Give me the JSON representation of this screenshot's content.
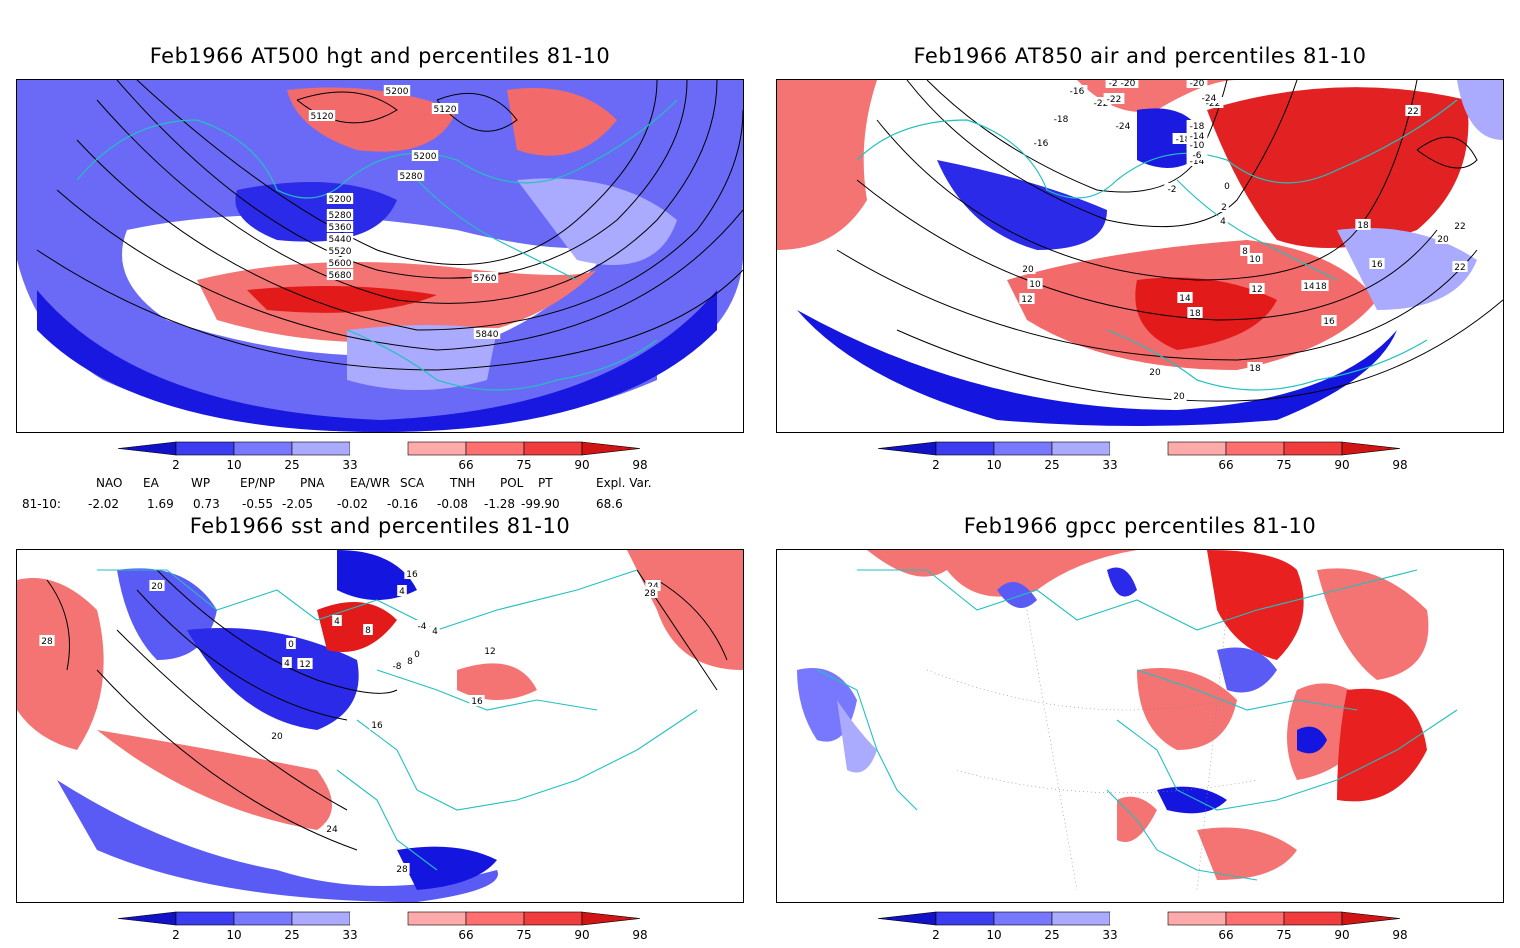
{
  "panels": [
    {
      "id": "p1",
      "title": "Feb1966 AT500 hgt and percentiles 81-10",
      "contour_labels": [
        "5200",
        "5120",
        "5120",
        "5200",
        "5280",
        "5200",
        "5280",
        "5360",
        "5440",
        "5520",
        "5600",
        "5680",
        "5760",
        "5840"
      ]
    },
    {
      "id": "p2",
      "title": "Feb1966 AT850 air and percentiles 81-10",
      "contour_labels": [
        "-16",
        "-18",
        "-22",
        "-24",
        "-20",
        "-22",
        "-20",
        "-24",
        "-22",
        "-24",
        "-16",
        "-18",
        "-16",
        "-14",
        "-2",
        "0",
        "2",
        "4",
        "8",
        "10",
        "12",
        "14",
        "16",
        "18",
        "20",
        "22",
        "22",
        "20",
        "18",
        "16",
        "18",
        "20",
        "10",
        "12",
        "14",
        "18",
        "20",
        "22",
        "-18",
        "-14",
        "-10",
        "-6",
        "-2"
      ]
    },
    {
      "id": "p3",
      "title": "Feb1966 sst and percentiles 81-10",
      "contour_labels": [
        "28",
        "20",
        "0",
        "4",
        "4",
        "8",
        "12",
        "16",
        "20",
        "24",
        "28",
        "24",
        "28",
        "4",
        "8",
        "12",
        "16",
        "-4",
        "0",
        "4",
        "-8",
        "16"
      ]
    },
    {
      "id": "p4",
      "title": "Feb1966 gpcc percentiles 81-10",
      "contour_labels": []
    }
  ],
  "colorbar": {
    "labels": [
      "2",
      "10",
      "25",
      "33",
      "66",
      "75",
      "90",
      "98"
    ],
    "colors": [
      "#1111c8",
      "#3c3cf0",
      "#7878ff",
      "#aaaaff",
      "#ffffff",
      "#ffaaaa",
      "#ff6f6f",
      "#f03c3c",
      "#d11414"
    ]
  },
  "indices": {
    "headers": [
      "NAO",
      "EA",
      "WP",
      "EP/NP",
      "PNA",
      "EA/WR",
      "SCA",
      "TNH",
      "POL",
      "PT",
      "Expl. Var."
    ],
    "row_label": "81-10:",
    "values": [
      "-2.02",
      "1.69",
      "0.73",
      "-0.55",
      "-2.05",
      "-0.02",
      "-0.16",
      "-0.08",
      "-1.28",
      "-99.90",
      "68.6"
    ]
  },
  "colors": {
    "land_outline": "#22c0c0",
    "contour": "#000000",
    "strong_blue": "#1515e6",
    "mid_blue": "#5a5af5",
    "light_blue": "#a8a8ff",
    "light_red": "#ffa8a8",
    "mid_red": "#f36a6a",
    "strong_red": "#e81c1c"
  }
}
